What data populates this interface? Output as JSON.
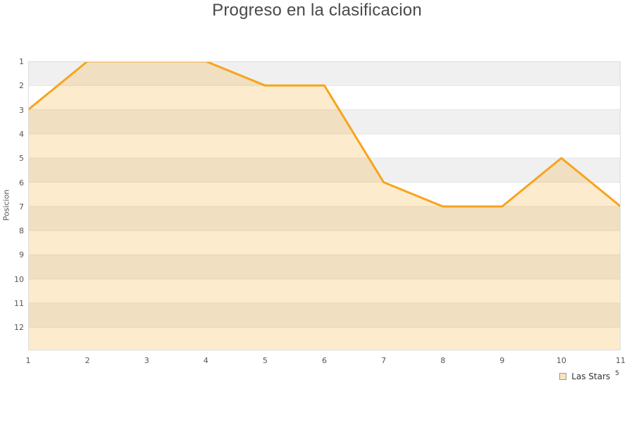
{
  "chart_data": {
    "type": "area",
    "title": "Progreso en la clasificacion",
    "xlabel": "",
    "ylabel": "Posicion",
    "x": [
      1,
      2,
      3,
      4,
      5,
      6,
      7,
      8,
      9,
      10,
      11
    ],
    "series": [
      {
        "name": "Las Stars",
        "values": [
          3,
          1,
          1,
          1,
          2,
          2,
          6,
          7,
          7,
          5,
          7
        ]
      }
    ],
    "x_axis": {
      "ticks": [
        "1",
        "2",
        "3",
        "4",
        "5",
        "6",
        "7",
        "8",
        "9",
        "10",
        "11"
      ],
      "min": 1,
      "max": 11
    },
    "y_axis": {
      "ticks": [
        "1",
        "2",
        "3",
        "4",
        "5",
        "6",
        "7",
        "8",
        "9",
        "10",
        "11",
        "12"
      ],
      "min": 1,
      "max": 12.95,
      "inverted": true
    },
    "legend": {
      "label": "Las Stars",
      "superscript": "5",
      "position": "bottom-right"
    },
    "grid": {
      "horizontal_bands": true,
      "band_color_odd": "#f0f0f0",
      "band_color_even": "#ffffff",
      "gridline_color": "#e3e3e3",
      "border_color": "#dddddd"
    },
    "colors": {
      "line": "#f7a41d",
      "fill": "#f7a41d",
      "fill_opacity": 0.22,
      "title_text": "#4a4a4a",
      "tick_text": "#555555",
      "legend_swatch_border": "#999999"
    }
  }
}
